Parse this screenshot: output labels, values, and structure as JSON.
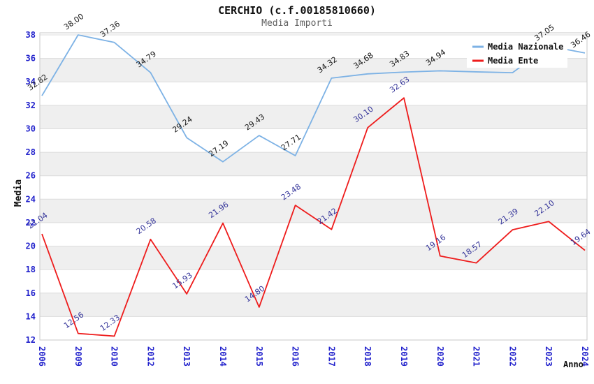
{
  "header": {
    "title": "CERCHIO (c.f.00185810660)",
    "subtitle": "Media Importi"
  },
  "axes": {
    "y_title": "Media",
    "x_title": "Anno",
    "y_ticks": [
      12,
      14,
      16,
      18,
      20,
      22,
      24,
      26,
      28,
      30,
      32,
      34,
      36,
      38
    ],
    "tick_label_color": "#2222cc"
  },
  "legend": {
    "position": "top-right",
    "items": [
      {
        "label": "Media Nazionale",
        "color": "#7db2e5"
      },
      {
        "label": "Media Ente",
        "color": "#ee1c1c"
      }
    ]
  },
  "chart_data": {
    "type": "line",
    "title": "CERCHIO (c.f.00185810660)",
    "subtitle": "Media Importi",
    "xlabel": "Anno",
    "ylabel": "Media",
    "x": [
      "2006",
      "2009",
      "2010",
      "2012",
      "2013",
      "2014",
      "2015",
      "2016",
      "2017",
      "2018",
      "2019",
      "2020",
      "2021",
      "2022",
      "2023",
      "2024"
    ],
    "series": [
      {
        "name": "Media Nazionale",
        "color": "#7db2e5",
        "label_color": "#1a1a1a",
        "values": [
          32.82,
          38.0,
          37.36,
          34.79,
          29.24,
          27.19,
          29.43,
          27.71,
          34.32,
          34.68,
          34.83,
          34.94,
          34.85,
          34.78,
          37.05,
          36.46
        ],
        "point_labels": [
          "32.82",
          "38.00",
          "37.36",
          "34.79",
          "29.24",
          "27.19",
          "29.43",
          "27.71",
          "34.32",
          "34.68",
          "34.83",
          "34.94",
          null,
          null,
          "37.05",
          "36.46"
        ]
      },
      {
        "name": "Media Ente",
        "color": "#ee1c1c",
        "label_color": "#333399",
        "values": [
          21.04,
          12.56,
          12.33,
          20.58,
          15.93,
          21.96,
          14.8,
          23.48,
          21.42,
          30.1,
          32.63,
          19.16,
          18.57,
          21.39,
          22.1,
          19.64
        ],
        "point_labels": [
          "21.04",
          "12.56",
          "12.33",
          "20.58",
          "15.93",
          "21.96",
          "14.80",
          "23.48",
          "21.42",
          "30.10",
          "32.63",
          "19.16",
          "18.57",
          "21.39",
          "22.10",
          "19.64"
        ]
      }
    ],
    "ylim": [
      12,
      38
    ],
    "y_tick_step": 2,
    "grid": true,
    "band_colors": [
      "#ffffff",
      "#efefef"
    ],
    "legend_position": "top-right"
  }
}
